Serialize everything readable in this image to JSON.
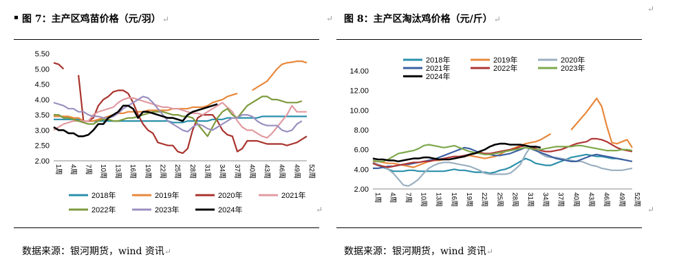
{
  "left": {
    "title": "图 7：主产区鸡苗价格（元/羽）",
    "source": "数据来源：银河期货，wind 资讯"
  },
  "right": {
    "title": "图 8：主产区淘汰鸡价格（元/斤）",
    "source": "数据来源：银河期货，wind 资讯"
  },
  "para_mark": "↵",
  "chart_data": [
    {
      "type": "line",
      "title": "主产区鸡苗价格（元/羽）",
      "xlabel": "",
      "ylabel": "",
      "ylim": [
        2.0,
        5.5
      ],
      "yticks": [
        "2.00",
        "2.50",
        "3.00",
        "3.50",
        "4.00",
        "4.50",
        "5.00",
        "5.50"
      ],
      "xticks": [
        "1周",
        "4周",
        "7周",
        "10周",
        "13周",
        "16周",
        "19周",
        "22周",
        "25周",
        "28周",
        "31周",
        "34周",
        "37周",
        "40周",
        "43周",
        "46周",
        "49周",
        "52周"
      ],
      "legend_position": "bottom",
      "series": [
        {
          "name": "2018年",
          "color": "#2A8FAA",
          "values": [
            3.35,
            3.35,
            3.35,
            3.35,
            3.35,
            3.35,
            3.3,
            3.3,
            3.3,
            3.3,
            3.3,
            3.3,
            3.3,
            3.3,
            3.3,
            3.3,
            3.3,
            3.3,
            3.3,
            3.3,
            3.3,
            3.3,
            3.3,
            3.3,
            3.25,
            3.25,
            3.25,
            3.3,
            3.3,
            3.3,
            3.3,
            3.3,
            3.35,
            3.35,
            3.35,
            3.4,
            3.4,
            3.4,
            3.4,
            3.4,
            3.4,
            3.4,
            3.45,
            3.45,
            3.45,
            3.45,
            3.45,
            3.45,
            3.45,
            3.45,
            3.45,
            3.45
          ]
        },
        {
          "name": "2019年",
          "color": "#E8873A",
          "values": [
            3.45,
            3.45,
            3.45,
            3.45,
            3.4,
            3.4,
            3.3,
            3.3,
            3.3,
            3.35,
            3.4,
            3.45,
            3.5,
            3.55,
            3.55,
            3.6,
            3.6,
            3.6,
            3.6,
            3.65,
            3.65,
            3.65,
            3.65,
            3.65,
            3.7,
            3.7,
            3.7,
            3.7,
            3.75,
            3.75,
            3.75,
            3.8,
            3.9,
            3.95,
            4.0,
            4.1,
            4.15,
            4.2,
            null,
            null,
            4.3,
            4.4,
            4.5,
            4.6,
            4.8,
            5.0,
            5.15,
            5.2,
            5.22,
            5.25,
            5.25,
            5.2
          ]
        },
        {
          "name": "2020年",
          "color": "#A8322B",
          "values": [
            5.2,
            5.15,
            5.0,
            null,
            null,
            4.8,
            3.3,
            3.3,
            3.4,
            3.8,
            4.0,
            4.1,
            4.25,
            4.3,
            4.3,
            4.2,
            3.9,
            3.5,
            3.2,
            3.0,
            2.9,
            2.6,
            2.55,
            2.5,
            2.5,
            2.3,
            2.25,
            2.4,
            3.0,
            3.4,
            3.5,
            3.5,
            3.5,
            3.3,
            3.0,
            2.85,
            2.8,
            2.3,
            2.4,
            2.65,
            2.65,
            2.65,
            2.6,
            2.55,
            2.55,
            2.55,
            2.55,
            2.5,
            2.55,
            2.6,
            2.7,
            2.8
          ]
        },
        {
          "name": "2021年",
          "color": "#E09AA0",
          "values": [
            3.0,
            3.1,
            3.2,
            3.25,
            3.3,
            3.3,
            3.3,
            3.3,
            3.5,
            3.6,
            3.65,
            3.7,
            3.75,
            3.9,
            4.0,
            4.05,
            4.05,
            4.0,
            3.95,
            3.9,
            3.85,
            3.8,
            3.75,
            3.75,
            3.7,
            3.7,
            3.65,
            3.6,
            3.55,
            3.55,
            3.5,
            3.6,
            3.7,
            3.8,
            3.9,
            3.75,
            3.6,
            3.3,
            3.1,
            3.0,
            3.0,
            2.9,
            2.8,
            2.75,
            2.9,
            3.1,
            3.3,
            3.5,
            3.8,
            3.6,
            3.6,
            3.6
          ]
        },
        {
          "name": "2022年",
          "color": "#7D9A3C",
          "values": [
            3.5,
            3.5,
            3.4,
            3.4,
            3.35,
            3.3,
            3.25,
            3.2,
            3.2,
            3.3,
            3.35,
            3.35,
            3.3,
            3.3,
            3.35,
            3.4,
            3.4,
            3.45,
            3.5,
            3.55,
            3.6,
            3.6,
            3.6,
            3.55,
            3.5,
            3.5,
            3.45,
            3.45,
            3.4,
            3.2,
            3.0,
            2.8,
            3.1,
            3.4,
            3.6,
            3.7,
            3.5,
            3.4,
            3.6,
            3.8,
            3.9,
            4.0,
            4.1,
            4.1,
            4.0,
            4.0,
            3.95,
            3.9,
            3.9,
            3.9,
            3.95,
            null
          ]
        },
        {
          "name": "2023年",
          "color": "#9A8FC0",
          "values": [
            3.9,
            3.85,
            3.8,
            3.7,
            3.7,
            3.6,
            3.6,
            3.5,
            3.45,
            3.45,
            3.4,
            3.4,
            3.45,
            3.55,
            3.7,
            3.8,
            3.9,
            4.0,
            4.1,
            4.05,
            3.9,
            3.7,
            3.5,
            3.3,
            3.2,
            3.1,
            3.0,
            2.95,
            3.1,
            3.2,
            3.15,
            3.05,
            3.0,
            3.1,
            3.2,
            3.3,
            3.4,
            3.4,
            3.5,
            3.5,
            3.45,
            3.3,
            3.2,
            3.15,
            3.15,
            3.15,
            3.0,
            2.95,
            3.0,
            3.2,
            3.3,
            null
          ]
        },
        {
          "name": "2024年",
          "color": "#000000",
          "values": [
            3.1,
            3.0,
            3.0,
            2.9,
            2.9,
            2.8,
            2.8,
            2.85,
            3.0,
            3.2,
            3.2,
            3.4,
            3.5,
            3.6,
            3.8,
            3.8,
            3.7,
            3.4,
            3.6,
            3.6,
            3.55,
            3.5,
            3.45,
            3.4,
            3.4,
            3.35,
            3.3,
            3.5,
            3.6,
            3.65,
            3.7,
            3.75,
            3.8,
            3.85,
            null,
            null,
            null,
            null,
            null,
            null,
            null,
            null,
            null,
            null,
            null,
            null,
            null,
            null,
            null,
            null,
            null,
            null
          ]
        }
      ]
    },
    {
      "type": "line",
      "title": "主产区淘汰鸡价格（元/斤）",
      "xlabel": "",
      "ylabel": "",
      "ylim": [
        2.0,
        14.0
      ],
      "yticks": [
        "2.00",
        "4.00",
        "6.00",
        "8.00",
        "10.00",
        "12.00",
        "14.00"
      ],
      "xticks": [
        "1周",
        "4周",
        "7周",
        "10周",
        "13周",
        "16周",
        "19周",
        "22周",
        "25周",
        "28周",
        "31周",
        "34周",
        "37周",
        "40周",
        "43周",
        "46周",
        "49周",
        "52周"
      ],
      "legend_position": "top",
      "series": [
        {
          "name": "2018年",
          "color": "#2A8FAA",
          "values": [
            4.6,
            4.4,
            4.2,
            4.0,
            3.8,
            3.8,
            3.8,
            3.9,
            3.9,
            3.8,
            3.8,
            3.8,
            3.8,
            3.8,
            3.8,
            3.9,
            4.0,
            3.9,
            3.9,
            3.8,
            3.7,
            3.7,
            3.7,
            3.6,
            3.7,
            3.9,
            4.0,
            4.2,
            4.5,
            4.8,
            5.1,
            4.9,
            4.6,
            4.5,
            4.4,
            4.4,
            4.6,
            4.8,
            5.0,
            5.2,
            5.3,
            5.4,
            5.5,
            5.4,
            5.3,
            5.3,
            5.2,
            5.1,
            5.1,
            5.0,
            null,
            null
          ]
        },
        {
          "name": "2019年",
          "color": "#E8873A",
          "values": [
            4.8,
            4.8,
            4.7,
            4.6,
            4.6,
            4.5,
            4.4,
            4.3,
            4.2,
            4.4,
            4.6,
            4.8,
            4.9,
            4.9,
            5.0,
            5.0,
            5.1,
            5.2,
            5.3,
            5.4,
            5.3,
            5.2,
            5.1,
            5.2,
            5.3,
            5.5,
            5.8,
            6.0,
            6.2,
            6.4,
            6.6,
            6.7,
            6.8,
            7.0,
            7.3,
            7.6,
            null,
            null,
            null,
            8.0,
            8.6,
            9.2,
            9.8,
            10.5,
            11.2,
            10.4,
            8.4,
            6.7,
            6.6,
            6.8,
            7.0,
            6.2
          ]
        },
        {
          "name": "2020年",
          "color": "#9AAFC0",
          "values": [
            4.7,
            4.5,
            4.3,
            4.0,
            3.6,
            3.0,
            2.4,
            2.3,
            2.6,
            3.0,
            3.6,
            4.1,
            4.4,
            4.6,
            4.7,
            4.7,
            4.6,
            4.5,
            4.4,
            4.3,
            4.1,
            3.9,
            3.6,
            3.5,
            3.5,
            3.5,
            3.5,
            3.6,
            4.0,
            4.5,
            5.5,
            6.3,
            6.0,
            5.6,
            5.3,
            5.2,
            5.2,
            5.1,
            5.0,
            4.9,
            4.8,
            4.8,
            4.6,
            4.4,
            4.3,
            4.1,
            4.0,
            3.9,
            3.9,
            3.9,
            4.0,
            4.1
          ]
        },
        {
          "name": "2021年",
          "color": "#3A5FA0",
          "values": [
            4.1,
            4.1,
            4.2,
            4.3,
            4.3,
            4.4,
            4.5,
            4.5,
            4.6,
            4.7,
            4.8,
            4.9,
            5.0,
            5.2,
            5.4,
            5.6,
            5.8,
            6.0,
            6.2,
            6.1,
            5.9,
            5.7,
            5.6,
            5.5,
            5.4,
            5.4,
            5.5,
            5.6,
            5.8,
            6.0,
            6.2,
            6.1,
            5.9,
            5.7,
            5.5,
            5.3,
            5.1,
            5.0,
            4.9,
            4.8,
            4.8,
            5.0,
            5.2,
            5.4,
            5.5,
            5.4,
            5.3,
            5.2,
            5.1,
            5.0,
            4.9,
            4.8
          ]
        },
        {
          "name": "2022年",
          "color": "#B03535",
          "values": [
            4.6,
            4.4,
            4.3,
            4.2,
            4.3,
            4.4,
            4.5,
            4.6,
            4.7,
            4.7,
            4.8,
            4.8,
            4.9,
            5.0,
            5.1,
            5.2,
            5.3,
            5.3,
            5.4,
            5.5,
            5.6,
            5.7,
            5.6,
            5.6,
            5.7,
            5.8,
            5.9,
            6.0,
            6.1,
            6.3,
            6.4,
            6.3,
            6.1,
            5.9,
            5.8,
            5.8,
            5.9,
            6.0,
            6.2,
            6.4,
            6.6,
            6.7,
            6.8,
            7.1,
            7.1,
            7.0,
            6.8,
            6.5,
            6.2,
            6.0,
            5.9,
            5.8
          ]
        },
        {
          "name": "2023年",
          "color": "#7DA84A",
          "values": [
            4.9,
            4.8,
            4.8,
            5.0,
            5.3,
            5.6,
            5.7,
            5.8,
            5.9,
            6.1,
            6.4,
            6.5,
            6.4,
            6.3,
            6.2,
            6.3,
            6.4,
            6.2,
            6.0,
            5.8,
            5.7,
            5.6,
            5.5,
            5.5,
            5.6,
            5.7,
            5.8,
            5.9,
            6.0,
            6.1,
            6.2,
            6.1,
            6.0,
            6.0,
            6.1,
            6.2,
            6.3,
            6.3,
            6.3,
            6.3,
            6.4,
            6.4,
            6.3,
            6.2,
            6.1,
            6.0,
            5.9,
            5.9,
            5.9,
            6.0,
            6.0,
            5.9
          ]
        },
        {
          "name": "2024年",
          "color": "#000000",
          "values": [
            5.1,
            5.0,
            5.0,
            4.9,
            4.9,
            4.8,
            4.9,
            5.0,
            5.1,
            5.1,
            5.2,
            5.2,
            5.1,
            5.0,
            5.0,
            5.0,
            5.1,
            5.2,
            5.3,
            5.5,
            5.6,
            5.8,
            6.0,
            6.3,
            6.5,
            6.6,
            6.6,
            6.5,
            6.5,
            6.5,
            6.4,
            6.3,
            6.3,
            6.2,
            null,
            null,
            null,
            null,
            null,
            null,
            null,
            null,
            null,
            null,
            null,
            null,
            null,
            null,
            null,
            null,
            null,
            null
          ]
        }
      ]
    }
  ]
}
